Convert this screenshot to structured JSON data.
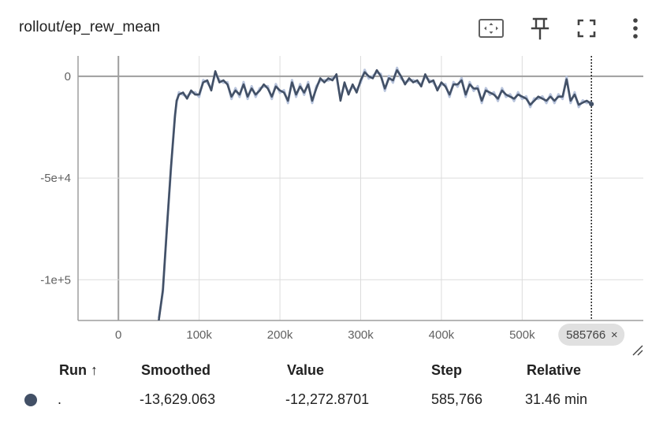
{
  "card": {
    "title": "rollout/ep_rew_mean"
  },
  "toolbar": {
    "fit_icon": "fit-domain-icon",
    "pin_icon": "pin-icon",
    "fullscreen_icon": "fullscreen-icon",
    "more_icon": "more-vert-icon"
  },
  "colors": {
    "series": "#425066",
    "raw": "#b8c4dc",
    "grid": "#dcdcdc",
    "axis": "#9e9e9e",
    "chip": "#e0e0e0"
  },
  "chart_data": {
    "type": "line",
    "title": "rollout/ep_rew_mean",
    "xlabel": "",
    "ylabel": "",
    "x_ticks": [
      "0",
      "100k",
      "200k",
      "300k",
      "400k",
      "500k"
    ],
    "y_ticks": [
      "0",
      "-5e+4",
      "-1e+5"
    ],
    "xlim": [
      -50000,
      650000
    ],
    "ylim": [
      -120000,
      10000
    ],
    "grid": true,
    "cursor_step": 585766,
    "cursor_label": "585766",
    "series": [
      {
        "name": ".",
        "x": [
          50000,
          55000,
          60000,
          65000,
          70000,
          72000,
          75000,
          80000,
          85000,
          90000,
          95000,
          100000,
          105000,
          110000,
          115000,
          120000,
          125000,
          130000,
          135000,
          140000,
          145000,
          150000,
          155000,
          160000,
          165000,
          170000,
          175000,
          180000,
          185000,
          190000,
          195000,
          200000,
          205000,
          210000,
          215000,
          220000,
          225000,
          230000,
          235000,
          240000,
          245000,
          250000,
          255000,
          260000,
          265000,
          270000,
          275000,
          280000,
          285000,
          290000,
          295000,
          300000,
          305000,
          310000,
          315000,
          320000,
          325000,
          330000,
          335000,
          340000,
          345000,
          350000,
          355000,
          360000,
          365000,
          370000,
          375000,
          380000,
          385000,
          390000,
          395000,
          400000,
          405000,
          410000,
          415000,
          420000,
          425000,
          430000,
          435000,
          440000,
          445000,
          450000,
          455000,
          460000,
          465000,
          470000,
          475000,
          480000,
          485000,
          490000,
          495000,
          500000,
          505000,
          510000,
          515000,
          520000,
          525000,
          530000,
          535000,
          540000,
          545000,
          550000,
          555000,
          560000,
          565000,
          570000,
          575000,
          580000,
          585766
        ],
        "y": [
          -120000,
          -105000,
          -75000,
          -45000,
          -20000,
          -12000,
          -9000,
          -8000,
          -11000,
          -7000,
          -9000,
          -9000,
          -3000,
          -2000,
          -7000,
          2500,
          -3000,
          -2000,
          -4000,
          -10000,
          -7000,
          -9000,
          -4000,
          -10000,
          -6000,
          -9000,
          -7000,
          -4000,
          -6000,
          -10000,
          -5000,
          -7000,
          -8000,
          -12000,
          -3000,
          -9000,
          -5000,
          -8000,
          -4000,
          -12000,
          -6000,
          -1000,
          -3000,
          -1000,
          -2000,
          1000,
          -12000,
          -3000,
          -9000,
          -4000,
          -8000,
          -2000,
          2000,
          0,
          -1000,
          3000,
          0,
          -6000,
          -1000,
          -2000,
          3000,
          0,
          -4000,
          -1000,
          -3000,
          -2000,
          -5000,
          1000,
          -3000,
          -2000,
          -7000,
          -3000,
          -5000,
          -9000,
          -4000,
          -4000,
          -2000,
          -9000,
          -4000,
          -6000,
          -6000,
          -12000,
          -7000,
          -8000,
          -9000,
          -11000,
          -7000,
          -9000,
          -10000,
          -11000,
          -9000,
          -10000,
          -11000,
          -14000,
          -12000,
          -10000,
          -11000,
          -12000,
          -10000,
          -12000,
          -10000,
          -10000,
          -1500,
          -12000,
          -9000,
          -14000,
          -13000,
          -12000,
          -13629
        ]
      }
    ]
  },
  "table": {
    "headers": {
      "run": "Run ↑",
      "smoothed": "Smoothed",
      "value": "Value",
      "step": "Step",
      "relative": "Relative"
    },
    "rows": [
      {
        "run": ".",
        "smoothed": "-13,629.063",
        "value": "-12,272.8701",
        "step": "585,766",
        "relative": "31.46 min"
      }
    ]
  }
}
